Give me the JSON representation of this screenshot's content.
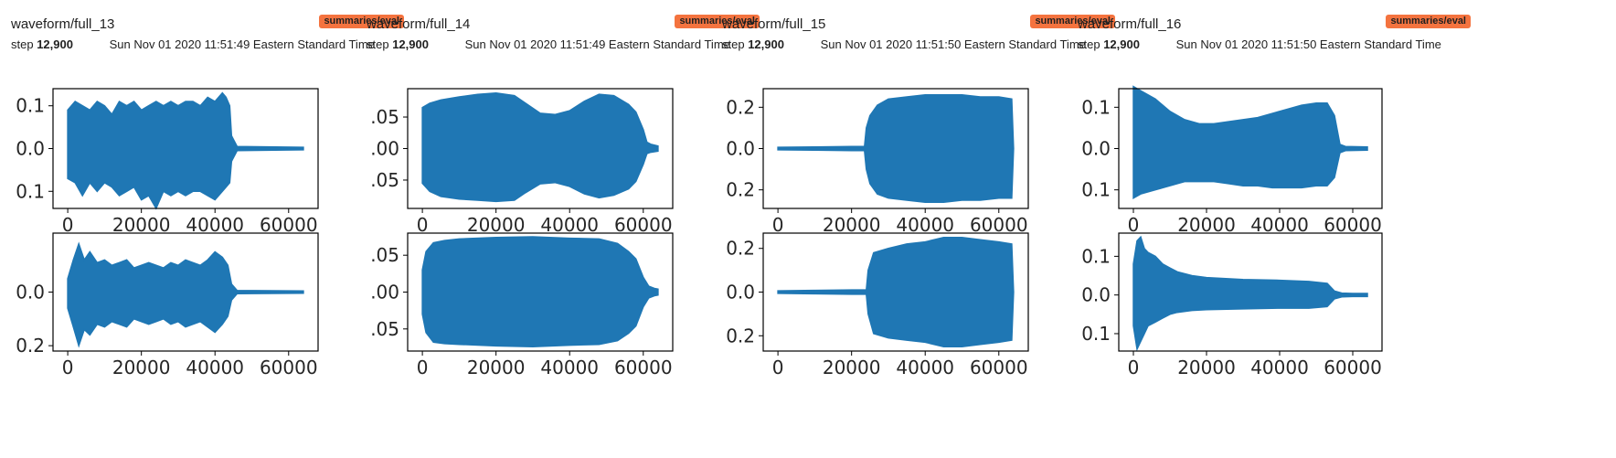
{
  "colors": {
    "series": "#1f77b4",
    "tag_bg": "#f4733f"
  },
  "cards": [
    {
      "title": "waveform/full_13",
      "tag": "summaries/eval",
      "step_label": "step",
      "step_value": "12,900",
      "timestamp": "Sun Nov 01 2020 11:51:49 Eastern Standard Time"
    },
    {
      "title": "waveform/full_14",
      "tag": "summaries/eval",
      "step_label": "step",
      "step_value": "12,900",
      "timestamp": "Sun Nov 01 2020 11:51:49 Eastern Standard Time"
    },
    {
      "title": "waveform/full_15",
      "tag": "summaries/eval",
      "step_label": "step",
      "step_value": "12,900",
      "timestamp": "Sun Nov 01 2020 11:51:50 Eastern Standard Time"
    },
    {
      "title": "waveform/full_16",
      "tag": "summaries/eval",
      "step_label": "step",
      "step_value": "12,900",
      "timestamp": "Sun Nov 01 2020 11:51:50 Eastern Standard Time"
    }
  ],
  "chart_data": [
    {
      "type": "area",
      "card": 0,
      "channel": 0,
      "xlim": [
        -4000,
        68000
      ],
      "ylim": [
        -0.14,
        0.14
      ],
      "x_ticks": [
        0,
        20000,
        40000,
        60000
      ],
      "x_tick_labels": [
        "0",
        "20000",
        "40000",
        "60000"
      ],
      "y_ticks": [
        -0.1,
        0.0,
        0.1
      ],
      "y_tick_labels": [
        "0.1",
        "0.0",
        "0.1"
      ],
      "envelope": {
        "x": [
          0,
          2000,
          4000,
          6000,
          8000,
          10000,
          12000,
          14000,
          16000,
          18000,
          20000,
          22000,
          24000,
          26000,
          28000,
          30000,
          32000,
          34000,
          36000,
          38000,
          40000,
          42000,
          43000,
          44000,
          44500,
          46000,
          64000
        ],
        "upper": [
          0.09,
          0.11,
          0.1,
          0.09,
          0.11,
          0.1,
          0.08,
          0.11,
          0.1,
          0.11,
          0.09,
          0.1,
          0.11,
          0.1,
          0.11,
          0.1,
          0.11,
          0.11,
          0.1,
          0.12,
          0.11,
          0.13,
          0.12,
          0.1,
          0.03,
          0.005,
          0.003
        ],
        "lower": [
          -0.07,
          -0.08,
          -0.11,
          -0.08,
          -0.1,
          -0.08,
          -0.09,
          -0.11,
          -0.1,
          -0.09,
          -0.12,
          -0.11,
          -0.14,
          -0.1,
          -0.11,
          -0.1,
          -0.11,
          -0.1,
          -0.1,
          -0.11,
          -0.12,
          -0.1,
          -0.09,
          -0.08,
          -0.03,
          -0.005,
          -0.003
        ]
      }
    },
    {
      "type": "area",
      "card": 0,
      "channel": 1,
      "xlim": [
        -4000,
        68000
      ],
      "ylim": [
        -0.22,
        0.22
      ],
      "x_ticks": [
        0,
        20000,
        40000,
        60000
      ],
      "x_tick_labels": [
        "0",
        "20000",
        "40000",
        "60000"
      ],
      "y_ticks": [
        -0.2,
        0.0
      ],
      "y_tick_labels": [
        "0.2",
        "0.0"
      ],
      "envelope": {
        "x": [
          0,
          1500,
          3000,
          4500,
          6000,
          8000,
          10000,
          12000,
          14000,
          16000,
          18000,
          20000,
          22000,
          24000,
          26000,
          28000,
          30000,
          32000,
          34000,
          36000,
          38000,
          40000,
          42000,
          43500,
          44500,
          46000,
          64000
        ],
        "upper": [
          0.05,
          0.12,
          0.18,
          0.12,
          0.15,
          0.11,
          0.12,
          0.1,
          0.11,
          0.12,
          0.09,
          0.1,
          0.11,
          0.1,
          0.09,
          0.11,
          0.1,
          0.12,
          0.11,
          0.1,
          0.12,
          0.15,
          0.13,
          0.1,
          0.03,
          0.006,
          0.004
        ],
        "lower": [
          -0.06,
          -0.13,
          -0.2,
          -0.14,
          -0.16,
          -0.12,
          -0.13,
          -0.11,
          -0.12,
          -0.13,
          -0.1,
          -0.11,
          -0.12,
          -0.11,
          -0.1,
          -0.12,
          -0.11,
          -0.13,
          -0.12,
          -0.11,
          -0.13,
          -0.15,
          -0.12,
          -0.09,
          -0.03,
          -0.006,
          -0.004
        ]
      }
    },
    {
      "type": "area",
      "card": 1,
      "channel": 0,
      "xlim": [
        -4000,
        68000
      ],
      "ylim": [
        -0.095,
        0.095
      ],
      "x_ticks": [
        0,
        20000,
        40000,
        60000
      ],
      "x_tick_labels": [
        "0",
        "20000",
        "40000",
        "60000"
      ],
      "y_ticks": [
        -0.05,
        0.0,
        0.05
      ],
      "y_tick_labels": [
        ".05",
        ".00",
        ".05"
      ],
      "envelope": {
        "x": [
          0,
          2000,
          5000,
          10000,
          15000,
          20000,
          25000,
          28000,
          32000,
          36000,
          40000,
          44000,
          48000,
          52000,
          56000,
          58000,
          60000,
          61000,
          62000,
          64000
        ],
        "upper": [
          0.065,
          0.072,
          0.077,
          0.082,
          0.086,
          0.088,
          0.084,
          0.072,
          0.056,
          0.054,
          0.06,
          0.075,
          0.086,
          0.084,
          0.07,
          0.058,
          0.03,
          0.01,
          0.007,
          0.004
        ],
        "lower": [
          -0.055,
          -0.068,
          -0.076,
          -0.08,
          -0.082,
          -0.084,
          -0.082,
          -0.07,
          -0.056,
          -0.054,
          -0.06,
          -0.072,
          -0.078,
          -0.074,
          -0.064,
          -0.052,
          -0.025,
          -0.008,
          -0.006,
          -0.004
        ]
      }
    },
    {
      "type": "area",
      "card": 1,
      "channel": 1,
      "xlim": [
        -4000,
        68000
      ],
      "ylim": [
        -0.08,
        0.08
      ],
      "x_ticks": [
        0,
        20000,
        40000,
        60000
      ],
      "x_tick_labels": [
        "0",
        "20000",
        "40000",
        "60000"
      ],
      "y_ticks": [
        -0.05,
        0.0,
        0.05
      ],
      "y_tick_labels": [
        ".05",
        ".00",
        ".05"
      ],
      "envelope": {
        "x": [
          0,
          1000,
          3000,
          6000,
          10000,
          20000,
          30000,
          40000,
          48000,
          53000,
          56000,
          58000,
          60000,
          61500,
          63000,
          64000
        ],
        "upper": [
          0.03,
          0.055,
          0.067,
          0.07,
          0.072,
          0.074,
          0.075,
          0.073,
          0.072,
          0.066,
          0.055,
          0.045,
          0.02,
          0.008,
          0.005,
          0.004
        ],
        "lower": [
          -0.03,
          -0.055,
          -0.068,
          -0.07,
          -0.071,
          -0.073,
          -0.074,
          -0.072,
          -0.071,
          -0.066,
          -0.056,
          -0.046,
          -0.02,
          -0.008,
          -0.005,
          -0.004
        ]
      }
    },
    {
      "type": "area",
      "card": 2,
      "channel": 0,
      "xlim": [
        -4000,
        68000
      ],
      "ylim": [
        -0.29,
        0.29
      ],
      "x_ticks": [
        0,
        20000,
        40000,
        60000
      ],
      "x_tick_labels": [
        "0",
        "20000",
        "40000",
        "60000"
      ],
      "y_ticks": [
        -0.2,
        0.0,
        0.2
      ],
      "y_tick_labels": [
        "0.2",
        "0.0",
        "0.2"
      ],
      "envelope": {
        "x": [
          0,
          10000,
          20000,
          23500,
          24000,
          25000,
          27000,
          30000,
          35000,
          40000,
          45000,
          50000,
          55000,
          60000,
          63500,
          64000
        ],
        "upper": [
          0.006,
          0.008,
          0.01,
          0.01,
          0.1,
          0.16,
          0.21,
          0.24,
          0.25,
          0.26,
          0.26,
          0.26,
          0.25,
          0.25,
          0.24,
          0.0
        ],
        "lower": [
          -0.006,
          -0.008,
          -0.01,
          -0.01,
          -0.1,
          -0.17,
          -0.22,
          -0.24,
          -0.25,
          -0.26,
          -0.26,
          -0.25,
          -0.25,
          -0.24,
          -0.24,
          0.0
        ]
      }
    },
    {
      "type": "area",
      "card": 2,
      "channel": 1,
      "xlim": [
        -4000,
        68000
      ],
      "ylim": [
        -0.27,
        0.27
      ],
      "x_ticks": [
        0,
        20000,
        40000,
        60000
      ],
      "x_tick_labels": [
        "0",
        "20000",
        "40000",
        "60000"
      ],
      "y_ticks": [
        -0.2,
        0.0,
        0.2
      ],
      "y_tick_labels": [
        "0.2",
        "0.0",
        "0.2"
      ],
      "envelope": {
        "x": [
          0,
          10000,
          20000,
          24000,
          24500,
          26000,
          30000,
          35000,
          40000,
          45000,
          50000,
          55000,
          60000,
          63500,
          64000
        ],
        "upper": [
          0.006,
          0.008,
          0.01,
          0.01,
          0.1,
          0.18,
          0.2,
          0.22,
          0.23,
          0.25,
          0.25,
          0.24,
          0.23,
          0.22,
          0.0
        ],
        "lower": [
          -0.006,
          -0.008,
          -0.01,
          -0.01,
          -0.1,
          -0.19,
          -0.21,
          -0.22,
          -0.23,
          -0.25,
          -0.25,
          -0.24,
          -0.23,
          -0.22,
          0.0
        ]
      }
    },
    {
      "type": "area",
      "card": 3,
      "channel": 0,
      "xlim": [
        -4000,
        68000
      ],
      "ylim": [
        -0.145,
        0.145
      ],
      "x_ticks": [
        0,
        20000,
        40000,
        60000
      ],
      "x_tick_labels": [
        "0",
        "20000",
        "40000",
        "60000"
      ],
      "y_ticks": [
        -0.1,
        0.0,
        0.1
      ],
      "y_tick_labels": [
        "0.1",
        "0.0",
        "0.1"
      ],
      "envelope": {
        "x": [
          0,
          2000,
          6000,
          10000,
          14000,
          18000,
          22000,
          26000,
          30000,
          34000,
          38000,
          42000,
          46000,
          50000,
          53000,
          55000,
          56500,
          58000,
          64000
        ],
        "upper": [
          0.15,
          0.14,
          0.12,
          0.09,
          0.07,
          0.06,
          0.06,
          0.065,
          0.07,
          0.075,
          0.085,
          0.095,
          0.105,
          0.11,
          0.11,
          0.08,
          0.01,
          0.005,
          0.004
        ],
        "lower": [
          -0.12,
          -0.11,
          -0.1,
          -0.09,
          -0.08,
          -0.08,
          -0.08,
          -0.085,
          -0.09,
          -0.09,
          -0.095,
          -0.095,
          -0.095,
          -0.09,
          -0.09,
          -0.07,
          -0.01,
          -0.005,
          -0.004
        ]
      }
    },
    {
      "type": "area",
      "card": 3,
      "channel": 1,
      "xlim": [
        -4000,
        68000
      ],
      "ylim": [
        -0.145,
        0.16
      ],
      "x_ticks": [
        0,
        20000,
        40000,
        60000
      ],
      "x_tick_labels": [
        "0",
        "20000",
        "40000",
        "60000"
      ],
      "y_ticks": [
        -0.1,
        0.0,
        0.1
      ],
      "y_tick_labels": [
        "0.1",
        "0.0",
        "0.1"
      ],
      "envelope": {
        "x": [
          0,
          1000,
          2000,
          3000,
          4000,
          6000,
          8000,
          10000,
          12000,
          16000,
          20000,
          30000,
          40000,
          48000,
          53000,
          55000,
          57000,
          60000,
          64000
        ],
        "upper": [
          0.08,
          0.14,
          0.15,
          0.12,
          0.11,
          0.1,
          0.08,
          0.07,
          0.06,
          0.05,
          0.045,
          0.04,
          0.038,
          0.035,
          0.03,
          0.01,
          0.005,
          0.004,
          0.004
        ],
        "lower": [
          -0.08,
          -0.14,
          -0.12,
          -0.1,
          -0.08,
          -0.07,
          -0.06,
          -0.05,
          -0.045,
          -0.04,
          -0.038,
          -0.036,
          -0.034,
          -0.034,
          -0.03,
          -0.01,
          -0.005,
          -0.004,
          -0.004
        ]
      }
    }
  ]
}
